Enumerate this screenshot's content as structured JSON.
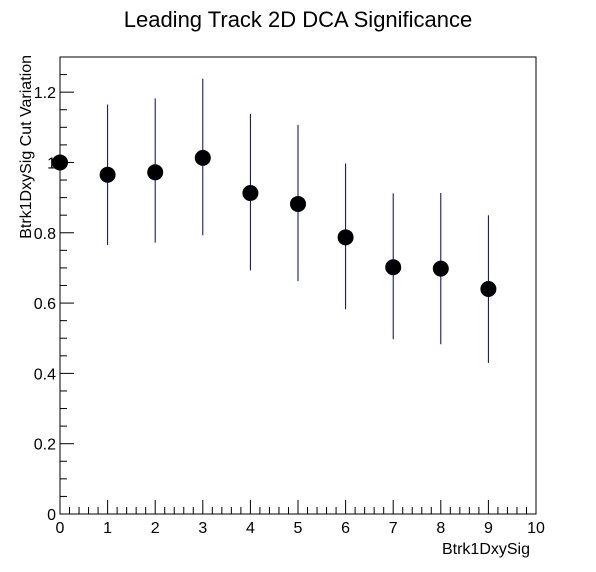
{
  "chart_data": {
    "type": "scatter",
    "title": "Leading Track 2D DCA Significance",
    "xlabel": "Btrk1DxySig",
    "ylabel": "Btrk1DxySig Cut Variation",
    "xlim": [
      0,
      10
    ],
    "ylim": [
      0,
      1.3
    ],
    "x_ticks": [
      0,
      1,
      2,
      3,
      4,
      5,
      6,
      7,
      8,
      9,
      10
    ],
    "x_tick_labels": [
      "0",
      "1",
      "2",
      "3",
      "4",
      "5",
      "6",
      "7",
      "8",
      "9",
      "10"
    ],
    "y_ticks": [
      0,
      0.2,
      0.4,
      0.6,
      0.8,
      1.0,
      1.2
    ],
    "y_tick_labels": [
      "0",
      "0.2",
      "0.4",
      "0.6",
      "0.8",
      "1",
      "1.2"
    ],
    "grid": false,
    "legend": "none",
    "series": [
      {
        "x": [
          0,
          1,
          2,
          3,
          4,
          5,
          6,
          7,
          8,
          9
        ],
        "y": [
          1.0,
          0.965,
          0.972,
          1.013,
          0.913,
          0.882,
          0.787,
          0.702,
          0.698,
          0.64
        ],
        "yerr_low": [
          0.0,
          0.2,
          0.2,
          0.22,
          0.22,
          0.22,
          0.205,
          0.205,
          0.215,
          0.21
        ],
        "yerr_high": [
          0.0,
          0.2,
          0.21,
          0.225,
          0.225,
          0.225,
          0.21,
          0.21,
          0.215,
          0.21
        ],
        "marker_color": "#000000",
        "error_bar_color": "#000080"
      }
    ]
  }
}
